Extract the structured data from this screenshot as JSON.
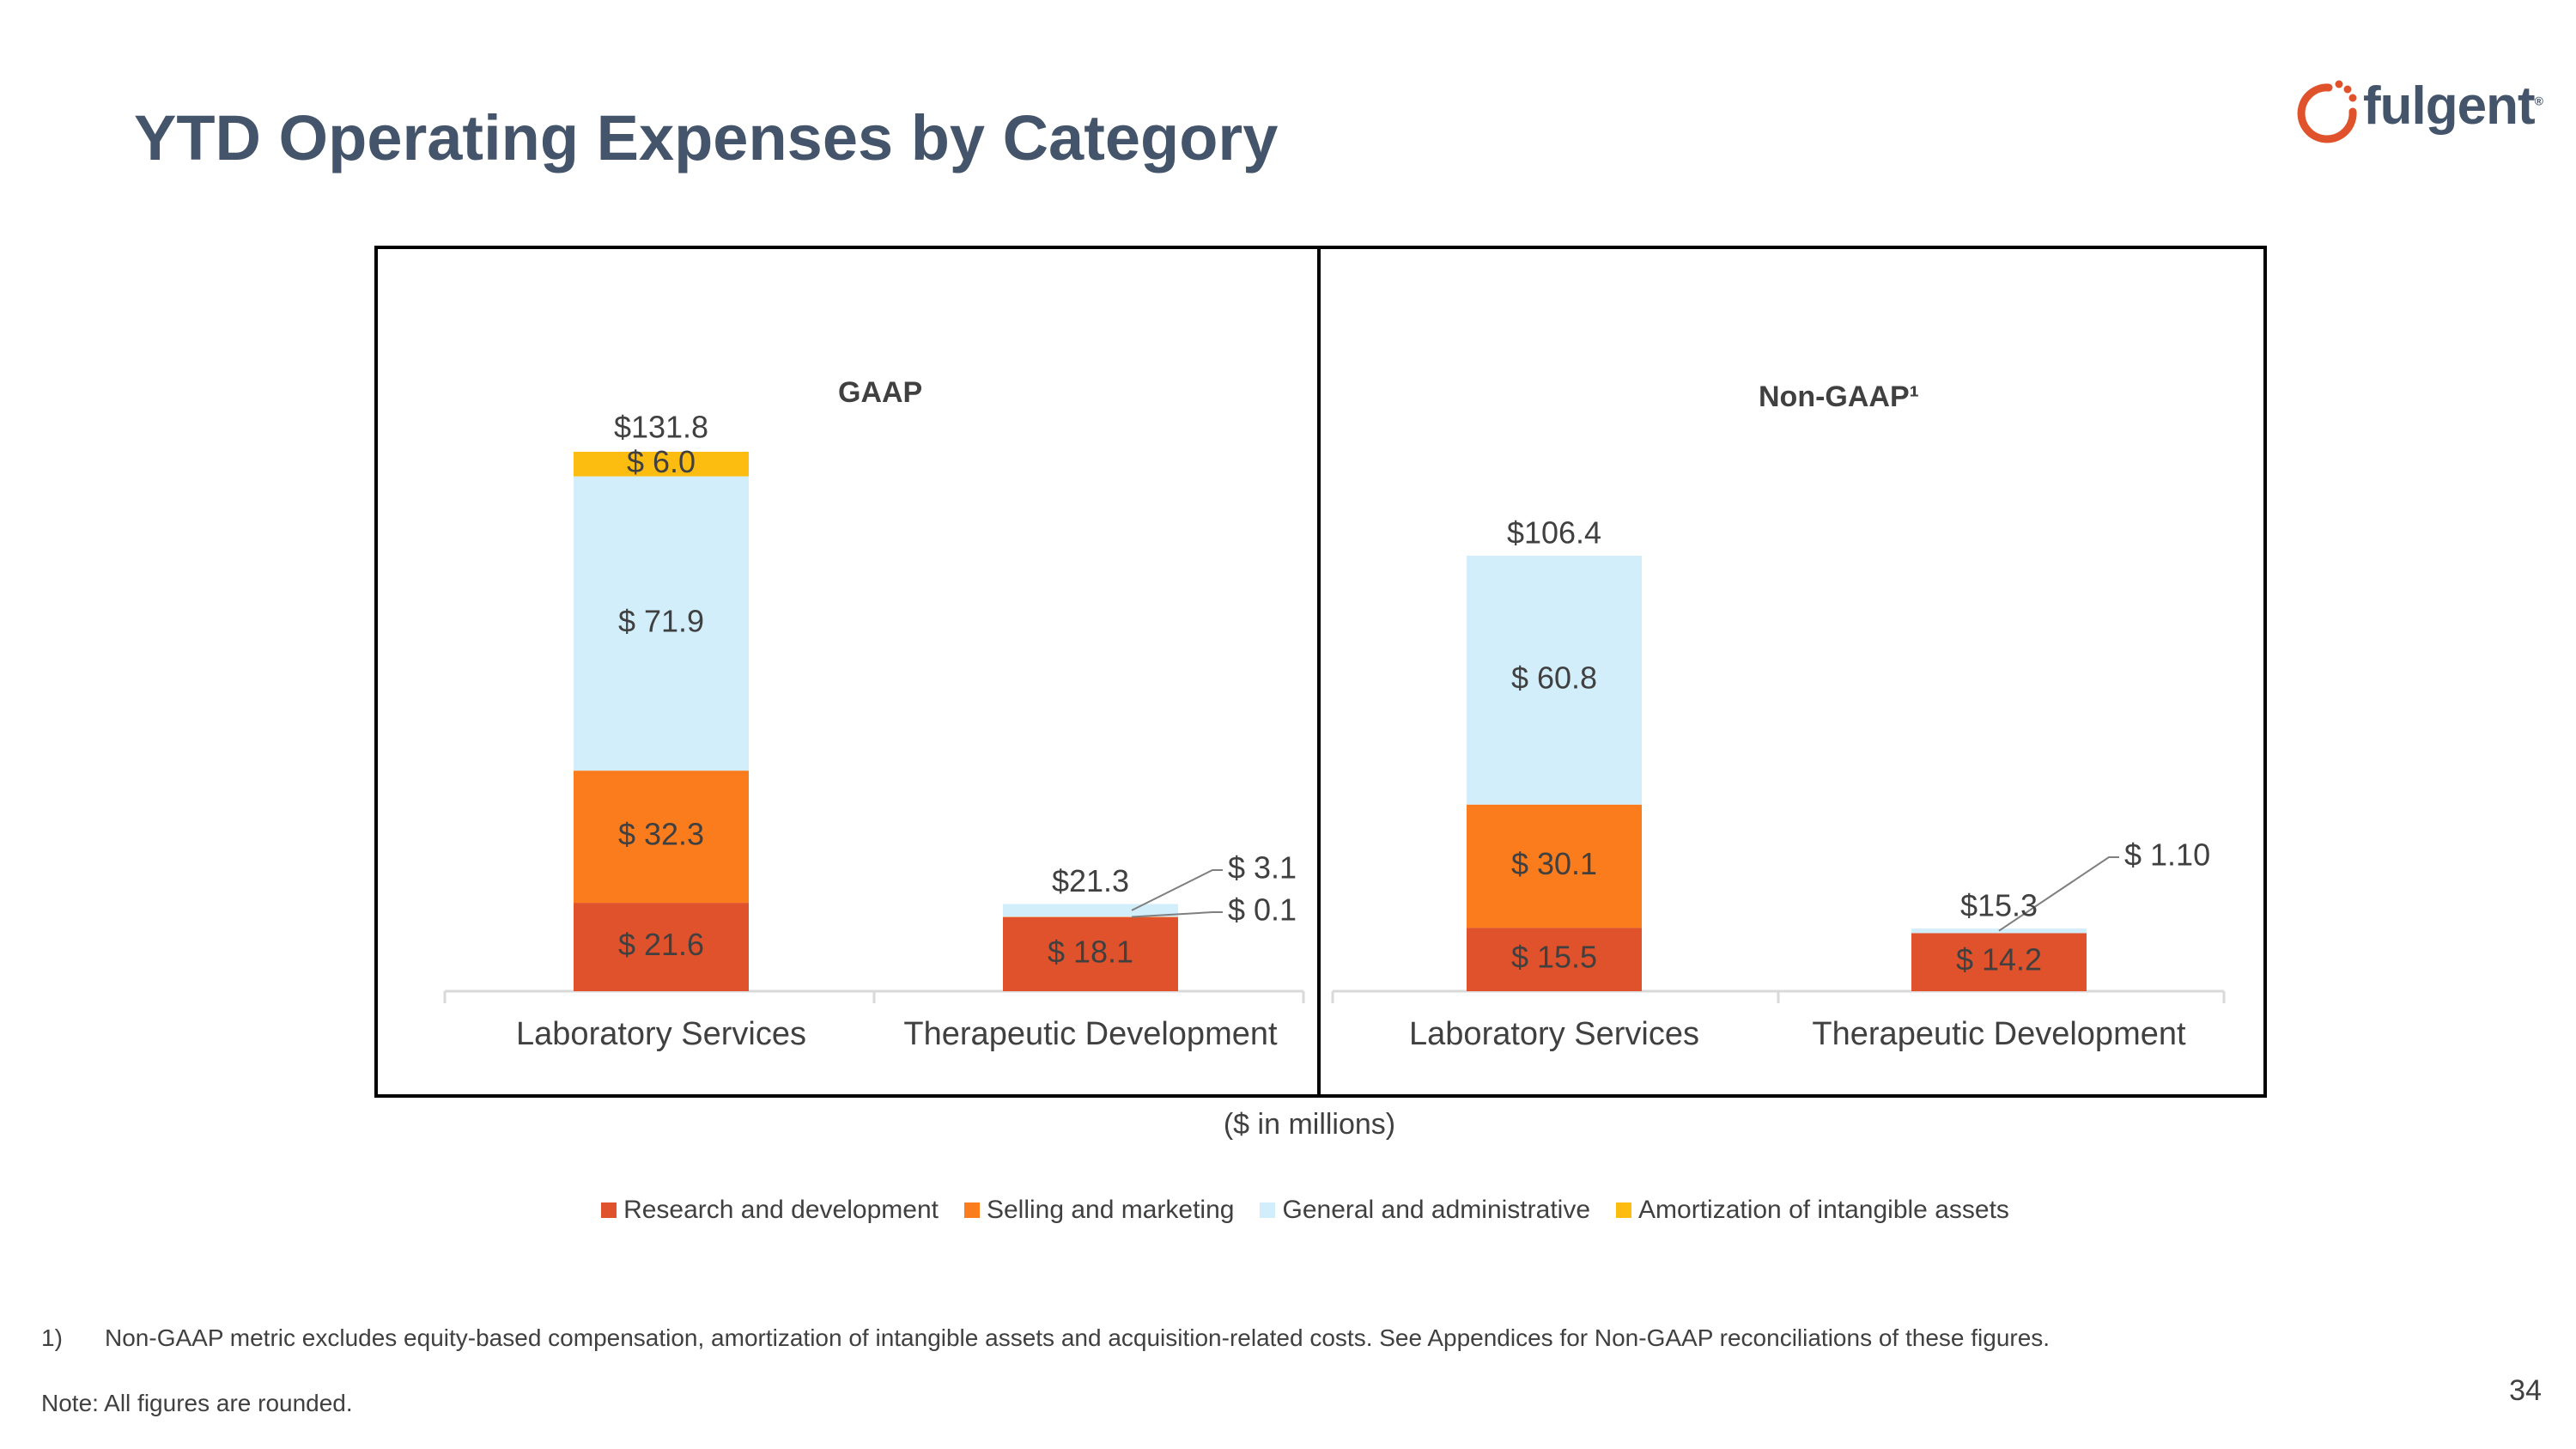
{
  "header": {
    "title": "YTD Operating Expenses by Category",
    "logo_text": "fulgent",
    "logo_mark": "®"
  },
  "chart_data": [
    {
      "type": "bar",
      "stacked": true,
      "title": "GAAP",
      "categories": [
        "Laboratory Services",
        "Therapeutic Development"
      ],
      "series": [
        {
          "name": "Research and development",
          "values": [
            21.6,
            18.1
          ],
          "labels": [
            "$ 21.6",
            "$ 18.1"
          ]
        },
        {
          "name": "Selling and marketing",
          "values": [
            32.3,
            0.1
          ],
          "labels": [
            "$ 32.3",
            "$ 0.1"
          ]
        },
        {
          "name": "General and administrative",
          "values": [
            71.9,
            3.1
          ],
          "labels": [
            "$ 71.9",
            "$ 3.1"
          ]
        },
        {
          "name": "Amortization of intangible assets",
          "values": [
            6.0,
            0
          ],
          "labels": [
            "$ 6.0",
            ""
          ]
        }
      ],
      "totals": [
        "$131.8",
        "$21.3"
      ],
      "ylim": [
        0,
        131.8
      ]
    },
    {
      "type": "bar",
      "stacked": true,
      "title": "Non-GAAP¹",
      "categories": [
        "Laboratory Services",
        "Therapeutic Development"
      ],
      "series": [
        {
          "name": "Research and development",
          "values": [
            15.5,
            14.2
          ],
          "labels": [
            "$ 15.5",
            "$ 14.2"
          ]
        },
        {
          "name": "Selling and marketing",
          "values": [
            30.1,
            0
          ],
          "labels": [
            "$ 30.1",
            ""
          ]
        },
        {
          "name": "General and administrative",
          "values": [
            60.8,
            1.1
          ],
          "labels": [
            "$ 60.8",
            "$ 1.10"
          ]
        },
        {
          "name": "Amortization of intangible assets",
          "values": [
            0,
            0
          ],
          "labels": [
            "",
            ""
          ]
        }
      ],
      "totals": [
        "$106.4",
        "$15.3"
      ],
      "ylim": [
        0,
        131.8
      ]
    }
  ],
  "units_note": "($ in millions)",
  "legend": [
    {
      "name": "Research and development",
      "color": "#e0522b"
    },
    {
      "name": "Selling and marketing",
      "color": "#fb7c1c"
    },
    {
      "name": "General and administrative",
      "color": "#d2eefb"
    },
    {
      "name": "Amortization of intangible assets",
      "color": "#fdbd10"
    }
  ],
  "footnotes": {
    "num": "1)",
    "text": "Non-GAAP metric excludes equity-based compensation, amortization of intangible assets and acquisition-related costs.  See Appendices for Non-GAAP reconciliations of these figures.",
    "note": "Note: All figures are rounded."
  },
  "page_number": "34"
}
